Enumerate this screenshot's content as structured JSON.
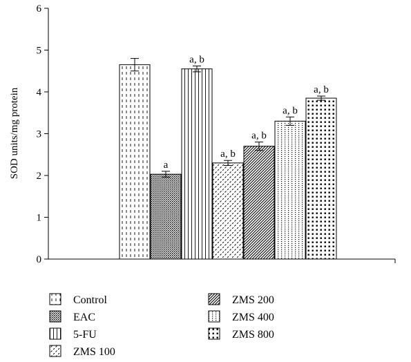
{
  "chart_data": {
    "type": "bar",
    "title": "",
    "xlabel": "",
    "ylabel": "SOD units/mg protein",
    "ylim": [
      0,
      6
    ],
    "yticks": [
      "0",
      "1",
      "2",
      "3",
      "4",
      "5",
      "6"
    ],
    "grid": false,
    "legend_position": "bottom",
    "categories": [
      "Control",
      "EAC",
      "5-FU",
      "ZMS 100",
      "ZMS 200",
      "ZMS 400",
      "ZMS 800"
    ],
    "values": [
      4.65,
      2.03,
      4.55,
      2.3,
      2.7,
      3.3,
      3.85
    ],
    "errors": [
      0.15,
      0.07,
      0.07,
      0.06,
      0.1,
      0.1,
      0.05
    ],
    "annotations": [
      "",
      "a",
      "a, b",
      "a, b",
      "a, b",
      "a, b",
      "a, b"
    ],
    "patterns": [
      "vertical-dashes",
      "dense-dots",
      "vertical-lines",
      "wavy-dashes",
      "diagonal-lines",
      "dotted-dashes",
      "large-dots"
    ],
    "legend": [
      "Control",
      "EAC",
      "5-FU",
      "ZMS 100",
      "ZMS 200",
      "ZMS 400",
      "ZMS 800"
    ]
  }
}
